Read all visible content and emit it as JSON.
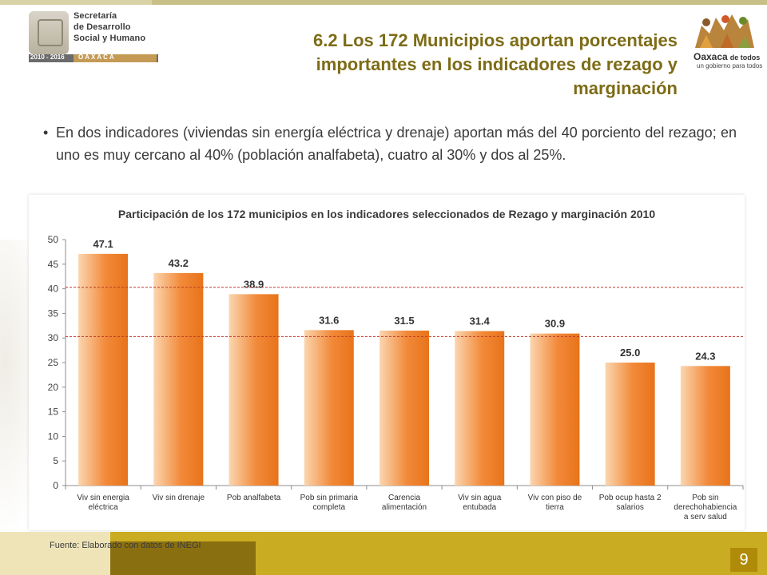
{
  "header": {
    "left_logo": {
      "line1": "Secretaría",
      "line2": "de Desarrollo",
      "line3": "Social y Humano",
      "years": "2010 - 2016",
      "state": "OAXACA"
    },
    "right_logo": {
      "brand": "Oaxaca",
      "brand_tail": "de todos",
      "tagline": "un gobierno para todos"
    },
    "title": "6.2 Los 172 Municipios aportan porcentajes importantes en los indicadores de rezago y marginación"
  },
  "bullet": {
    "marker": "•",
    "text": "En dos indicadores (viviendas sin energía eléctrica y drenaje) aportan más del 40 porciento del rezago; en uno es muy cercano al 40% (población analfabeta), cuatro al 30% y  dos al 25%."
  },
  "chart_data": {
    "type": "bar",
    "title": "Participación de los 172 municipios en los indicadores seleccionados de Rezago y marginación 2010",
    "xlabel": "",
    "ylabel": "",
    "ylim": [
      0,
      50
    ],
    "yticks": [
      0,
      5,
      10,
      15,
      20,
      25,
      30,
      35,
      40,
      45,
      50
    ],
    "categories": [
      [
        "Viv sin energia",
        "eléctrica"
      ],
      [
        "Viv sin drenaje"
      ],
      [
        "Pob analfabeta"
      ],
      [
        "Pob sin primaria",
        "completa"
      ],
      [
        "Carencia",
        "alimentación"
      ],
      [
        "Viv sin agua",
        "entubada"
      ],
      [
        "Viv con piso de",
        "tierra"
      ],
      [
        "Pob ocup hasta  2",
        "salarios"
      ],
      [
        "Pob sin",
        "derechohabiencia",
        "a serv salud"
      ]
    ],
    "values": [
      47.1,
      43.2,
      38.9,
      31.6,
      31.5,
      31.4,
      30.9,
      25.0,
      24.3
    ],
    "value_labels": [
      "47.1",
      "43.2",
      "38.9",
      "31.6",
      "31.5",
      "31.4",
      "30.9",
      "25.0",
      "24.3"
    ],
    "reference_lines": [
      40.3,
      30.3
    ],
    "bar_color": "#e8731a",
    "reference_color": "#c0392b",
    "grid": false,
    "legend": "none"
  },
  "footer": {
    "source": "Fuente: Elaborado con datos  de INEGI",
    "page": "9"
  }
}
